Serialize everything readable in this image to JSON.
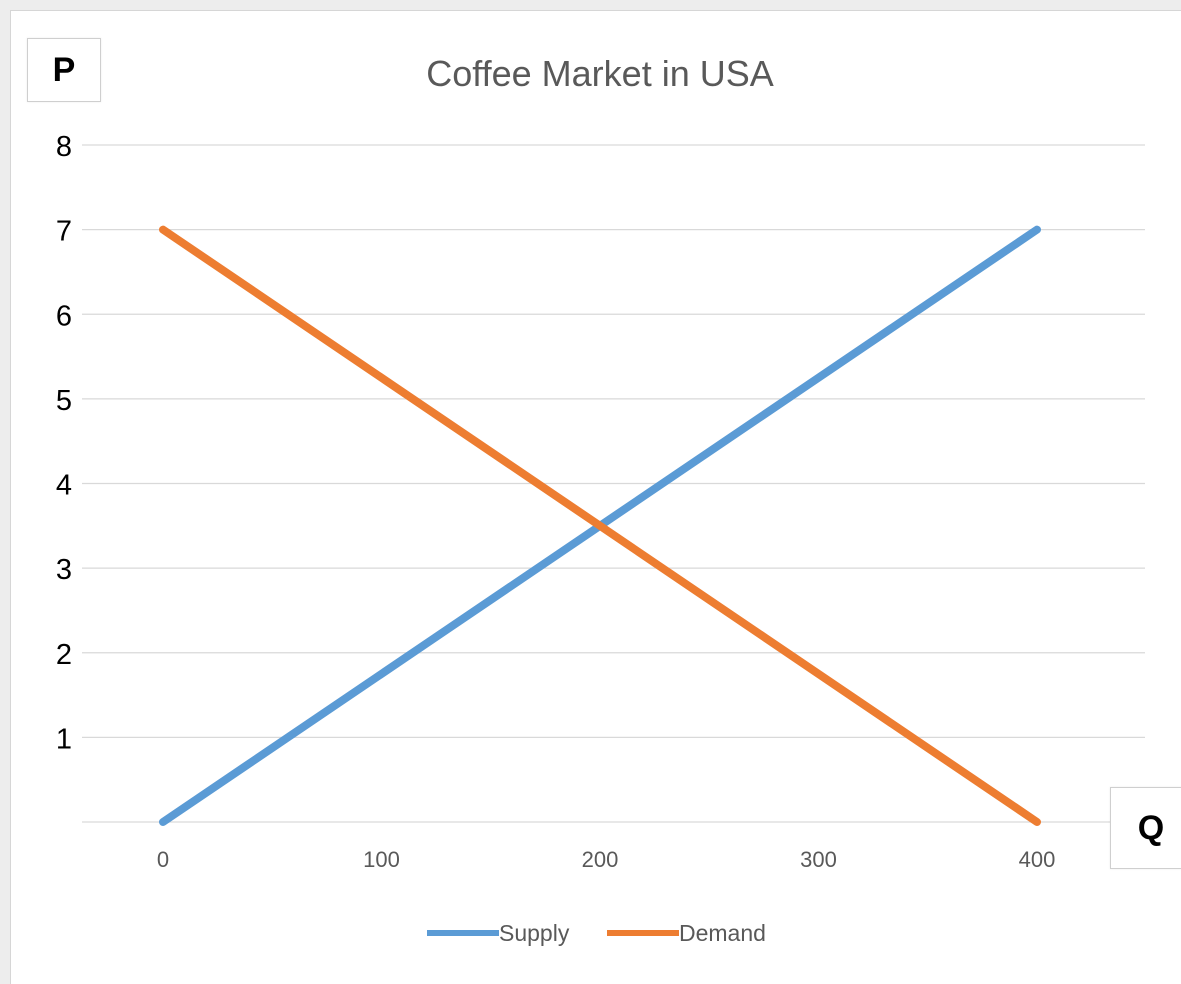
{
  "axis_boxes": {
    "y_letter": "P",
    "x_letter": "Q"
  },
  "chart_data": {
    "type": "line",
    "title": "Coffee Market in USA",
    "xlabel": "Q",
    "ylabel": "P",
    "x_ticks": [
      0,
      100,
      200,
      300,
      400
    ],
    "y_ticks": [
      1,
      2,
      3,
      4,
      5,
      6,
      7,
      8
    ],
    "xlim": [
      0,
      400
    ],
    "ylim": [
      0,
      8
    ],
    "grid": "horizontal",
    "legend_position": "bottom",
    "series": [
      {
        "name": "Supply",
        "color": "#5b9bd5",
        "points": [
          {
            "x": 0,
            "y": 0
          },
          {
            "x": 400,
            "y": 7
          }
        ]
      },
      {
        "name": "Demand",
        "color": "#ed7d31",
        "points": [
          {
            "x": 0,
            "y": 7
          },
          {
            "x": 400,
            "y": 0
          }
        ]
      }
    ]
  }
}
